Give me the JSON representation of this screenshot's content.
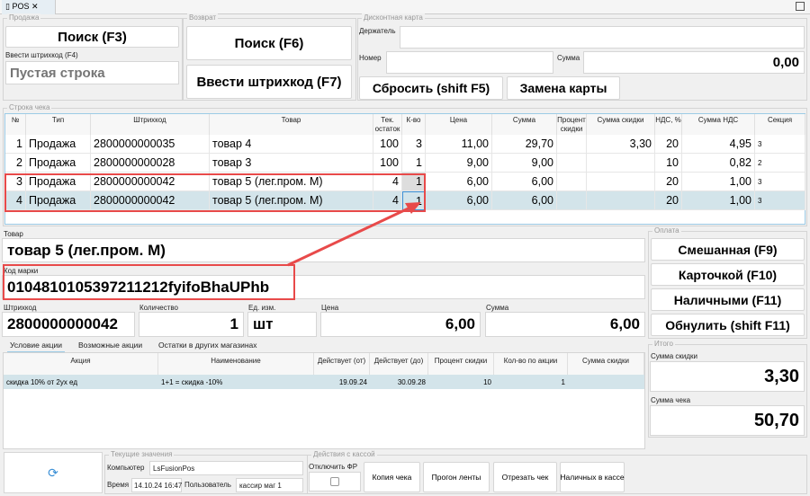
{
  "tab": {
    "title": "POS"
  },
  "sale": {
    "title": "Продажа",
    "search": "Поиск (F3)",
    "barcode_label": "Ввести штрихкод (F4)",
    "barcode_placeholder": "Пустая строка"
  },
  "return": {
    "title": "Возврат",
    "search": "Поиск (F6)",
    "barcode": "Ввести штрихкод (F7)"
  },
  "discount_card": {
    "title": "Дисконтная карта",
    "holder_label": "Держатель",
    "holder": "",
    "number_label": "Номер",
    "number": "",
    "sum_label": "Сумма",
    "sum": "0,00",
    "reset": "Сбросить (shift F5)",
    "replace": "Замена карты"
  },
  "receipt": {
    "title": "Строка чека",
    "columns": [
      "№",
      "Тип",
      "Штрихкод",
      "Товар",
      "Тек. остаток",
      "К-во",
      "Цена",
      "Сумма",
      "Процент скидки",
      "Сумма скидки",
      "НДС, %",
      "Сумма НДС",
      "Секция"
    ],
    "rows": [
      [
        "1",
        "Продажа",
        "2800000000035",
        "товар 4",
        "100",
        "3",
        "11,00",
        "29,70",
        "",
        "3,30",
        "20",
        "4,95",
        "3"
      ],
      [
        "2",
        "Продажа",
        "2800000000028",
        "товар 3",
        "100",
        "1",
        "9,00",
        "9,00",
        "",
        "",
        "10",
        "0,82",
        "2"
      ],
      [
        "3",
        "Продажа",
        "2800000000042",
        "товар 5 (лег.пром. М)",
        "4",
        "1",
        "6,00",
        "6,00",
        "",
        "",
        "20",
        "1,00",
        "3"
      ],
      [
        "4",
        "Продажа",
        "2800000000042",
        "товар 5 (лег.пром. М)",
        "4",
        "1",
        "6,00",
        "6,00",
        "",
        "",
        "20",
        "1,00",
        "3"
      ]
    ]
  },
  "detail": {
    "product_label": "Товар",
    "product": "товар 5 (лег.пром. М)",
    "mark_label": "Код марки",
    "mark": "0104810105397211212fyifoBhaUPhb",
    "barcode_label": "Штрихкод",
    "barcode": "2800000000042",
    "qty_label": "Количество",
    "qty": "1",
    "unit_label": "Ед. изм.",
    "unit": "шт",
    "price_label": "Цена",
    "price": "6,00",
    "sum_label": "Сумма",
    "sum": "6,00"
  },
  "promo_tabs": [
    "Условие акции",
    "Возможные акции",
    "Остатки в других магазинах"
  ],
  "promo": {
    "columns": [
      "Акция",
      "Наименование",
      "Действует (от)",
      "Действует (до)",
      "Процент скидки",
      "Кол-во по акции",
      "Сумма скидки"
    ],
    "rows": [
      [
        "скидка 10% от 2ух ед",
        "1+1 = скидка  -10%",
        "19.09.24",
        "30.09.28",
        "10",
        "1",
        ""
      ]
    ]
  },
  "payment": {
    "title": "Оплата",
    "mixed": "Смешанная (F9)",
    "card": "Карточкой (F10)",
    "cash": "Наличными (F11)",
    "reset": "Обнулить (shift F11)"
  },
  "totals": {
    "title": "Итого",
    "discount_label": "Сумма скидки",
    "discount": "3,30",
    "total_label": "Сумма чека",
    "total": "50,70"
  },
  "current": {
    "title": "Текущие значения",
    "computer_label": "Компьютер",
    "computer": "LsFusionPos",
    "time_label": "Время",
    "time": "14.10.24 16:47",
    "user_label": "Пользователь",
    "user": "кассир маг 1"
  },
  "cash_actions": {
    "title": "Действия с кассой",
    "disable_fr": "Отключить ФР",
    "copy": "Копия чека",
    "feed": "Прогон ленты",
    "cut": "Отрезать чек",
    "cash_in": "Наличных в кассе"
  },
  "colors": {
    "accent": "#e84a4a",
    "selected_row": "#d3e4ea"
  }
}
